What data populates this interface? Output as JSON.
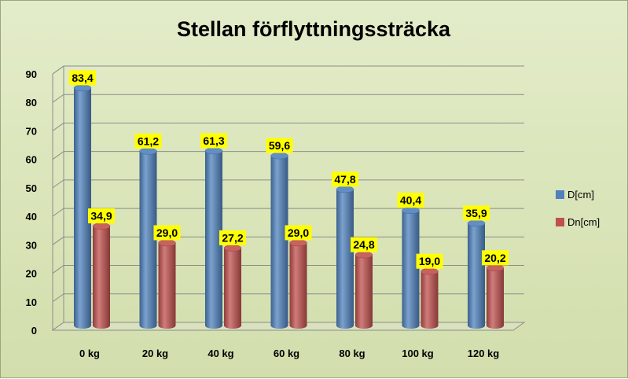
{
  "chart_data": {
    "type": "bar",
    "title": "Stellan förflyttningssträcka",
    "categories": [
      "0 kg",
      "20 kg",
      "40 kg",
      "60 kg",
      "80 kg",
      "100 kg",
      "120 kg"
    ],
    "series": [
      {
        "name": "D[cm]",
        "values": [
          83.4,
          61.2,
          61.3,
          59.6,
          47.8,
          40.4,
          35.9
        ],
        "labels": [
          "83,4",
          "61,2",
          "61,3",
          "59,6",
          "47,8",
          "40,4",
          "35,9"
        ],
        "color": "#4f81bd"
      },
      {
        "name": "Dn[cm]",
        "values": [
          34.9,
          29.0,
          27.2,
          29.0,
          24.8,
          19.0,
          20.2
        ],
        "labels": [
          "34,9",
          "29,0",
          "27,2",
          "29,0",
          "24,8",
          "19,0",
          "20,2"
        ],
        "color": "#c0504d"
      }
    ],
    "yticks": [
      "0",
      "10",
      "20",
      "30",
      "40",
      "50",
      "60",
      "70",
      "80",
      "90"
    ],
    "ylim": [
      0,
      90
    ],
    "grid": true,
    "legend_position": "right",
    "label_background": "#ffff00"
  }
}
